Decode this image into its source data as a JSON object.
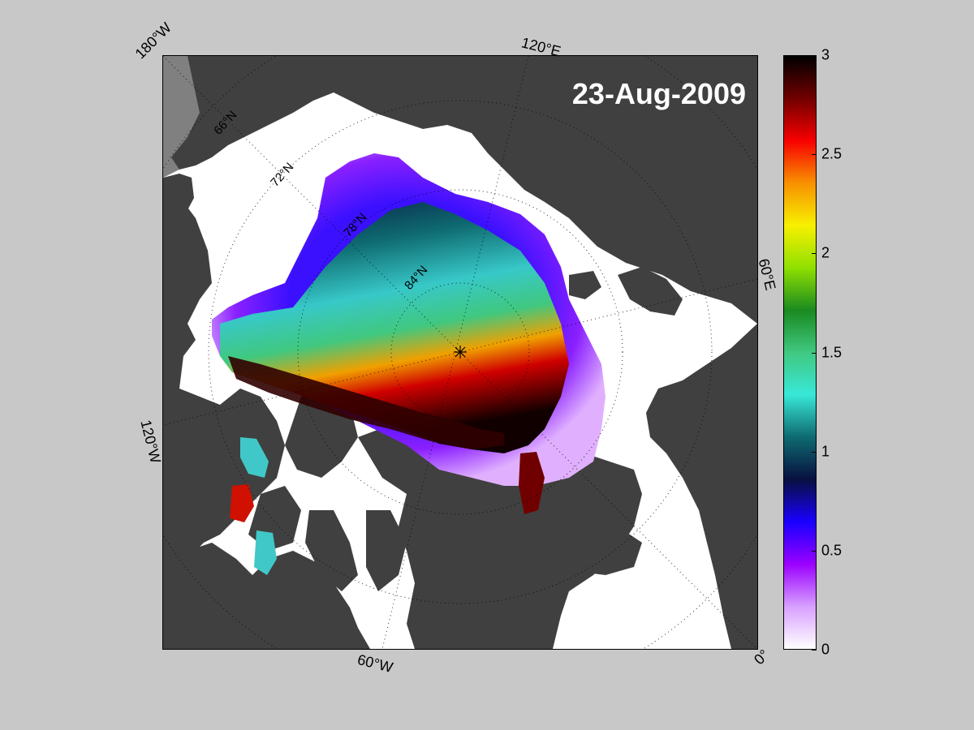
{
  "map": {
    "date_label": "23-Aug-2009",
    "longitude_labels": {
      "lon_180w": "180°W",
      "lon_120e": "120°E",
      "lon_60e": "60°E",
      "lon_0": "0°",
      "lon_60w": "60°W",
      "lon_120w": "120°W"
    },
    "latitude_labels": {
      "lat_66": "66°N",
      "lat_72": "72°N",
      "lat_78": "78°N",
      "lat_84": "84°N"
    },
    "colors": {
      "background": "#c8c8c8",
      "land": "#404040",
      "ocean": "#ffffff",
      "outside_domain_land": "#808080"
    }
  },
  "colorbar": {
    "min": 0,
    "max": 3,
    "ticks": [
      "0",
      "0.5",
      "1",
      "1.5",
      "2",
      "2.5",
      "3"
    ],
    "colormap": [
      "#ffffff",
      "#d8a0ff",
      "#9a00ff",
      "#1a00ff",
      "#081040",
      "#0e6a70",
      "#38e8d8",
      "#40c880",
      "#1a8a20",
      "#90e000",
      "#f8f000",
      "#f89000",
      "#f80000",
      "#700000",
      "#000000"
    ]
  }
}
